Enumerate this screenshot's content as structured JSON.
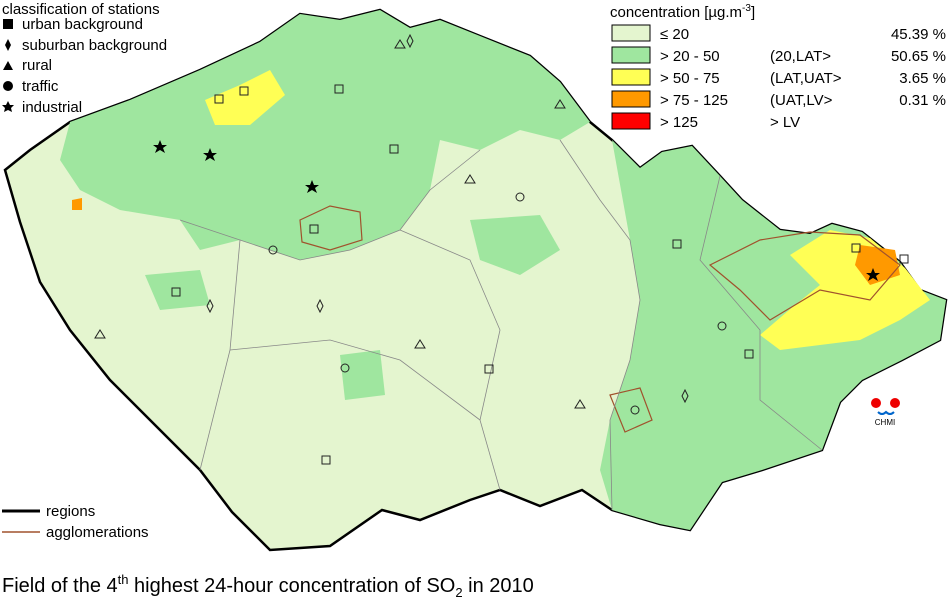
{
  "stations_legend": {
    "title": "classification of stations",
    "items": [
      "urban background",
      "suburban background",
      "rural",
      "traffic",
      "industrial"
    ]
  },
  "concentration_legend": {
    "title": "concentration [µg.m",
    "title_sup": "-3",
    "title_end": "]",
    "rows": [
      {
        "label": "≤ 20",
        "share": "45.39 %"
      },
      {
        "label": "> 20 - 50",
        "class": "(20,LAT>",
        "share": "50.65 %"
      },
      {
        "label": "> 50 - 75",
        "class": "(LAT,UAT>",
        "share": "3.65 %"
      },
      {
        "label": "> 75 - 125",
        "class": "(UAT,LV>",
        "share": "0.31 %"
      },
      {
        "label": "> 125",
        "class": "> LV"
      }
    ]
  },
  "lines_legend": {
    "items": [
      "regions",
      "agglomerations"
    ]
  },
  "logo": {
    "label": "CHMI"
  },
  "title": {
    "part1": "Field of the ",
    "num": "4",
    "sup": "th",
    "part2": " highest 24-hour concentration of SO",
    "sub": "2",
    "part3": " in 2010"
  }
}
